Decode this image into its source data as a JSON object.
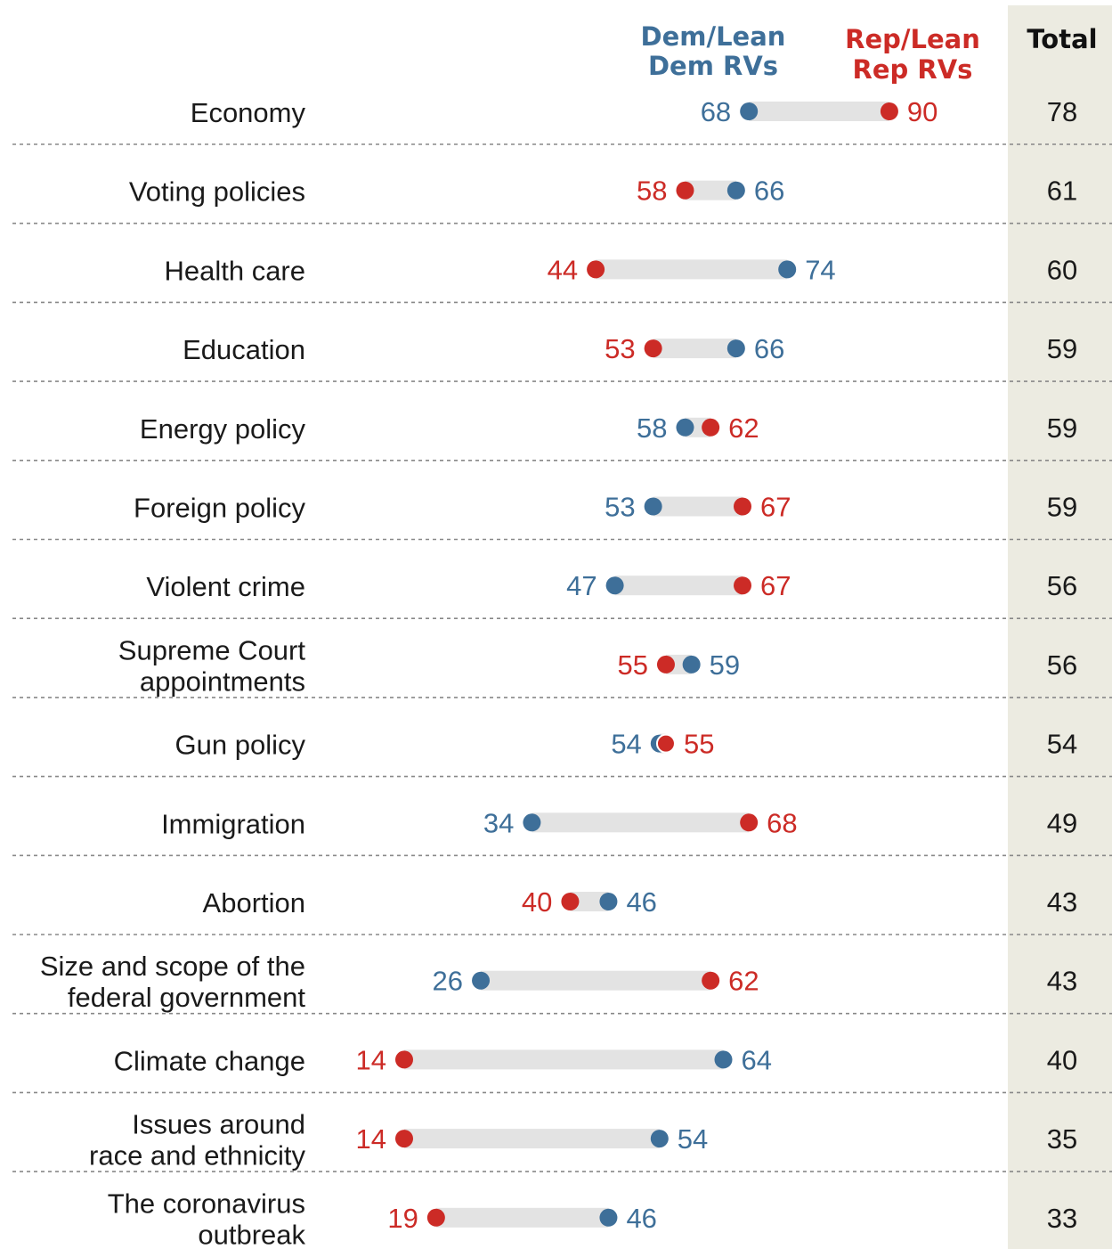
{
  "chart_data": {
    "type": "dot",
    "legend": {
      "dem": [
        "Dem/Lean",
        "Dem RVs"
      ],
      "rep": [
        "Rep/Lean",
        "Rep RVs"
      ],
      "total": "Total"
    },
    "categories": [
      {
        "label": [
          "Economy"
        ],
        "dem": 68,
        "rep": 90,
        "total": 78
      },
      {
        "label": [
          "Voting policies"
        ],
        "dem": 66,
        "rep": 58,
        "total": 61
      },
      {
        "label": [
          "Health care"
        ],
        "dem": 74,
        "rep": 44,
        "total": 60
      },
      {
        "label": [
          "Education"
        ],
        "dem": 66,
        "rep": 53,
        "total": 59
      },
      {
        "label": [
          "Energy policy"
        ],
        "dem": 58,
        "rep": 62,
        "total": 59
      },
      {
        "label": [
          "Foreign policy"
        ],
        "dem": 53,
        "rep": 67,
        "total": 59
      },
      {
        "label": [
          "Violent crime"
        ],
        "dem": 47,
        "rep": 67,
        "total": 56
      },
      {
        "label": [
          "Supreme Court",
          "appointments"
        ],
        "dem": 59,
        "rep": 55,
        "total": 56
      },
      {
        "label": [
          "Gun policy"
        ],
        "dem": 54,
        "rep": 55,
        "total": 54
      },
      {
        "label": [
          "Immigration"
        ],
        "dem": 34,
        "rep": 68,
        "total": 49
      },
      {
        "label": [
          "Abortion"
        ],
        "dem": 46,
        "rep": 40,
        "total": 43
      },
      {
        "label": [
          "Size and scope of the",
          "federal government"
        ],
        "dem": 26,
        "rep": 62,
        "total": 43
      },
      {
        "label": [
          "Climate change"
        ],
        "dem": 64,
        "rep": 14,
        "total": 40
      },
      {
        "label": [
          "Issues around",
          "race and ethnicity"
        ],
        "dem": 54,
        "rep": 14,
        "total": 35
      },
      {
        "label": [
          "The coronavirus",
          "outbreak"
        ],
        "dem": 46,
        "rep": 19,
        "total": 33
      }
    ],
    "colors": {
      "dem": "#3e6f99",
      "rep": "#cc2b26",
      "bar": "#e3e3e3",
      "total_bg": "#ecebe1",
      "grid": "#888888"
    }
  }
}
